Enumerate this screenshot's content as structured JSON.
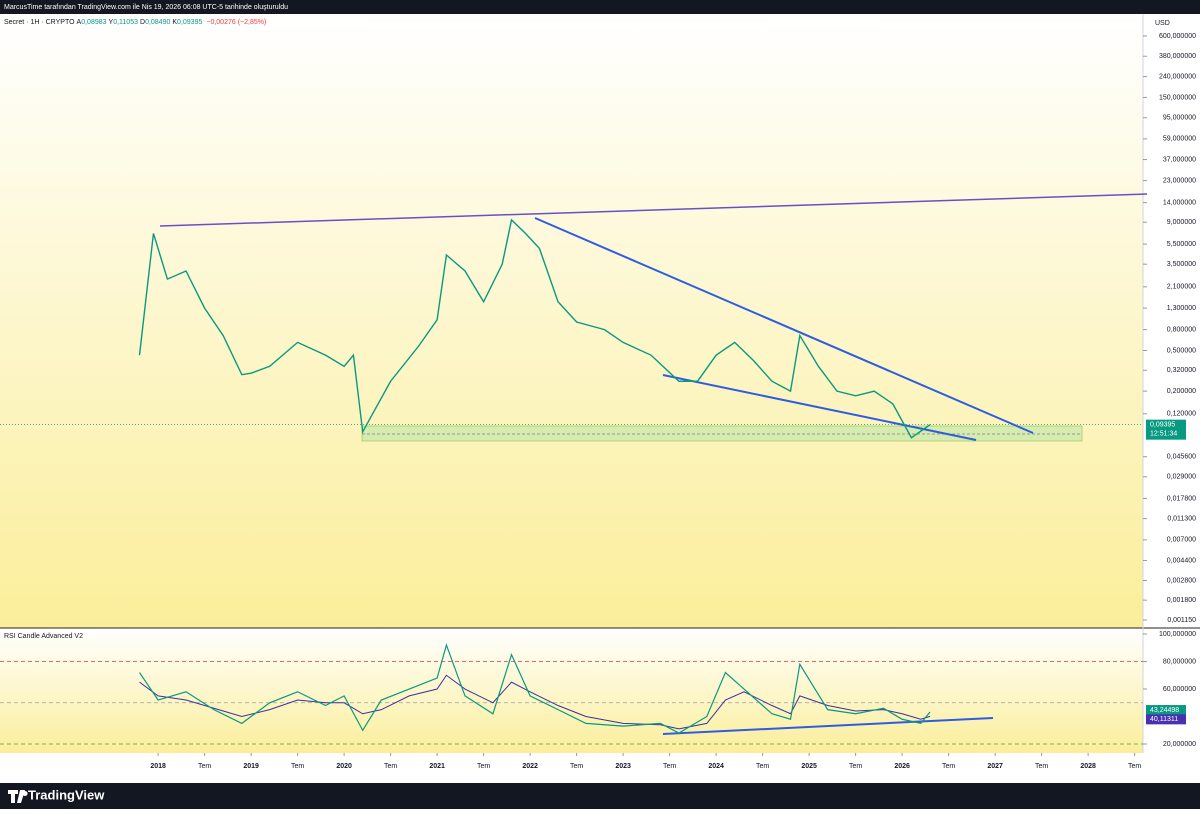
{
  "header": {
    "attribution": "MarcusTime tarafından TradingView.com ile Nis 19, 2026 06:08 UTC-5 tarihinde oluşturuldu",
    "symbol": "Secret · 1H · CRYPTO",
    "ohlc": [
      {
        "key": "A",
        "value": "0,08983"
      },
      {
        "key": "Y",
        "value": "0,11053"
      },
      {
        "key": "D",
        "value": "0,08490"
      },
      {
        "key": "K",
        "value": "0,09395"
      }
    ],
    "change": "−0,00276 (−2,85%)"
  },
  "footer": {
    "brand": "TradingView"
  },
  "chart_data": [
    {
      "type": "line",
      "currency": "USD",
      "log_scale": true,
      "color": "#089981",
      "x": [
        2017.8,
        2017.95,
        2018.1,
        2018.3,
        2018.5,
        2018.7,
        2018.9,
        2019.0,
        2019.2,
        2019.5,
        2019.8,
        2020.0,
        2020.1,
        2020.2,
        2020.5,
        2020.8,
        2021.0,
        2021.1,
        2021.3,
        2021.5,
        2021.7,
        2021.8,
        2021.95,
        2022.1,
        2022.3,
        2022.5,
        2022.8,
        2023.0,
        2023.3,
        2023.6,
        2023.8,
        2024.0,
        2024.2,
        2024.4,
        2024.6,
        2024.8,
        2024.9,
        2025.1,
        2025.3,
        2025.5,
        2025.7,
        2025.9,
        2026.1,
        2026.3
      ],
      "values": [
        0.45,
        7,
        2.5,
        3.0,
        1.3,
        0.7,
        0.29,
        0.3,
        0.35,
        0.6,
        0.45,
        0.35,
        0.45,
        0.08,
        0.25,
        0.55,
        1.0,
        4.3,
        3.0,
        1.5,
        3.5,
        9.5,
        7,
        5,
        1.5,
        0.95,
        0.8,
        0.6,
        0.45,
        0.25,
        0.25,
        0.45,
        0.6,
        0.4,
        0.25,
        0.2,
        0.7,
        0.35,
        0.2,
        0.18,
        0.2,
        0.15,
        0.07,
        0.09395
      ],
      "xlim": [
        2016.3,
        2028.59
      ],
      "xticks": [
        2018,
        {
          "value": 2018.5,
          "label": "Tem"
        },
        2019,
        {
          "value": 2019.5,
          "label": "Tem"
        },
        2020,
        {
          "value": 2020.5,
          "label": "Tem"
        },
        2021,
        {
          "value": 2021.5,
          "label": "Tem"
        },
        2022,
        {
          "value": 2022.5,
          "label": "Tem"
        },
        2023,
        {
          "value": 2023.5,
          "label": "Tem"
        },
        2024,
        {
          "value": 2024.5,
          "label": "Tem"
        },
        2025,
        {
          "value": 2025.5,
          "label": "Tem"
        },
        2026,
        {
          "value": 2026.5,
          "label": "Tem"
        },
        2027,
        {
          "value": 2027.5,
          "label": "Tem"
        },
        2028,
        {
          "value": 2028.5,
          "label": "Tem"
        }
      ],
      "ylim": [
        0.00096,
        984
      ],
      "yticks": [
        {
          "value": 600,
          "label": "600,000000"
        },
        {
          "value": 380,
          "label": "380,000000"
        },
        {
          "value": 240,
          "label": "240,000000"
        },
        {
          "value": 150,
          "label": "150,000000"
        },
        {
          "value": 95,
          "label": "95,000000"
        },
        {
          "value": 59,
          "label": "59,000000"
        },
        {
          "value": 37,
          "label": "37,000000"
        },
        {
          "value": 23,
          "label": "23,000000"
        },
        {
          "value": 14,
          "label": "14,000000"
        },
        {
          "value": 9,
          "label": "9,000000"
        },
        {
          "value": 5.5,
          "label": "5,500000"
        },
        {
          "value": 3.5,
          "label": "3,500000"
        },
        {
          "value": 2.1,
          "label": "2,100000"
        },
        {
          "value": 1.3,
          "label": "1,300000"
        },
        {
          "value": 0.8,
          "label": "0,800000"
        },
        {
          "value": 0.5,
          "label": "0,500000"
        },
        {
          "value": 0.32,
          "label": "0,320000"
        },
        {
          "value": 0.2,
          "label": "0,200000"
        },
        {
          "value": 0.12,
          "label": "0,120000"
        },
        {
          "value": 0.0456,
          "label": "0,045600"
        },
        {
          "value": 0.029,
          "label": "0,029000"
        },
        {
          "value": 0.0178,
          "label": "0,017800"
        },
        {
          "value": 0.0113,
          "label": "0,011300"
        },
        {
          "value": 0.007,
          "label": "0,007000"
        },
        {
          "value": 0.0044,
          "label": "0,004400"
        },
        {
          "value": 0.0028,
          "label": "0,002800"
        },
        {
          "value": 0.0018,
          "label": "0,001800"
        },
        {
          "value": 0.00115,
          "label": "0,001150"
        }
      ],
      "last_price": {
        "value": 0.09395,
        "label": "0,09395",
        "countdown": "12:51:34"
      }
    },
    {
      "type": "line",
      "title": "RSI Candle Advanced V2",
      "color": "#089981",
      "ma_color": "#3b2fa0",
      "x": [
        2017.8,
        2018.0,
        2018.3,
        2018.6,
        2018.9,
        2019.2,
        2019.5,
        2019.8,
        2020.0,
        2020.2,
        2020.4,
        2020.7,
        2021.0,
        2021.1,
        2021.3,
        2021.6,
        2021.8,
        2022.0,
        2022.3,
        2022.6,
        2023.0,
        2023.4,
        2023.6,
        2023.9,
        2024.1,
        2024.3,
        2024.6,
        2024.8,
        2024.9,
        2025.2,
        2025.5,
        2025.8,
        2026.0,
        2026.2,
        2026.3
      ],
      "values": [
        72,
        52,
        58,
        45,
        35,
        50,
        58,
        48,
        55,
        30,
        52,
        60,
        68,
        92,
        55,
        42,
        85,
        55,
        45,
        35,
        33,
        35,
        28,
        40,
        72,
        60,
        42,
        38,
        78,
        45,
        42,
        46,
        38,
        35,
        43.24498
      ],
      "ma_values": [
        65,
        55,
        52,
        46,
        40,
        45,
        52,
        50,
        50,
        42,
        45,
        55,
        60,
        70,
        60,
        50,
        65,
        58,
        48,
        40,
        35,
        34,
        31,
        35,
        52,
        58,
        48,
        42,
        55,
        48,
        44,
        45,
        42,
        38,
        40.11311
      ],
      "ylim": [
        13.45,
        104.4
      ],
      "yticks": [
        {
          "value": 100,
          "label": "100,000000"
        },
        {
          "value": 80,
          "label": "80,000000"
        },
        {
          "value": 60,
          "label": "60,000000"
        },
        {
          "value": 20,
          "label": "20,000000"
        }
      ],
      "levels": [
        {
          "value": 80,
          "color": "#e53935"
        },
        {
          "value": 50,
          "color": "#9e9e9e"
        },
        {
          "value": 20,
          "color": "#43a047"
        }
      ],
      "last_values": [
        {
          "value": 43.24498,
          "label": "43,24498",
          "color": "#089981"
        },
        {
          "value": 40.11311,
          "label": "40,11311",
          "color": "#4a2fb0"
        }
      ]
    }
  ]
}
